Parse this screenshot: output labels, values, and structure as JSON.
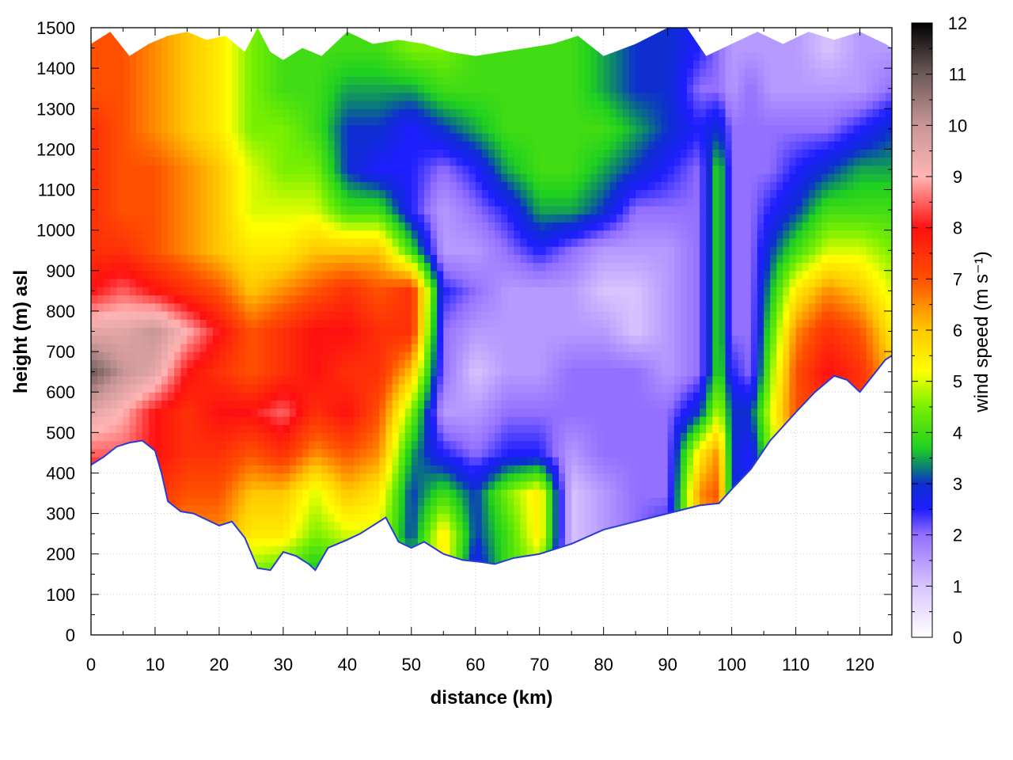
{
  "chart_data": {
    "type": "heatmap",
    "title": "",
    "xlabel": "distance (km)",
    "ylabel": "height (m) asl",
    "colorbar_label": "wind speed (m s⁻¹)",
    "xlim": [
      0,
      125
    ],
    "ylim": [
      0,
      1500
    ],
    "clim": [
      0,
      12
    ],
    "x_ticks": [
      0,
      10,
      20,
      30,
      40,
      50,
      60,
      70,
      80,
      90,
      100,
      110,
      120
    ],
    "y_ticks": [
      0,
      100,
      200,
      300,
      400,
      500,
      600,
      700,
      800,
      900,
      1000,
      1100,
      1200,
      1300,
      1400,
      1500
    ],
    "colorbar_ticks": [
      0,
      1,
      2,
      3,
      4,
      5,
      6,
      7,
      8,
      9,
      10,
      11,
      12
    ],
    "grid": true,
    "colormap": [
      {
        "v": 0,
        "c": "#ffffff"
      },
      {
        "v": 1,
        "c": "#d8c4ff"
      },
      {
        "v": 2,
        "c": "#9370ff"
      },
      {
        "v": 2.5,
        "c": "#1e1eff"
      },
      {
        "v": 3,
        "c": "#0e2ed0"
      },
      {
        "v": 3.3,
        "c": "#0a7a7a"
      },
      {
        "v": 3.7,
        "c": "#20d020"
      },
      {
        "v": 4.5,
        "c": "#78f000"
      },
      {
        "v": 5.2,
        "c": "#ffff00"
      },
      {
        "v": 6,
        "c": "#ffc800"
      },
      {
        "v": 7,
        "c": "#ff5000"
      },
      {
        "v": 8,
        "c": "#ff1010"
      },
      {
        "v": 9,
        "c": "#ffb4b4"
      },
      {
        "v": 10,
        "c": "#c89696"
      },
      {
        "v": 11,
        "c": "#6e5a5a"
      },
      {
        "v": 12,
        "c": "#000000"
      }
    ],
    "surface_height_m": [
      [
        0,
        420
      ],
      [
        2,
        440
      ],
      [
        4,
        465
      ],
      [
        6,
        475
      ],
      [
        8,
        480
      ],
      [
        10,
        455
      ],
      [
        11,
        400
      ],
      [
        12,
        330
      ],
      [
        14,
        305
      ],
      [
        16,
        300
      ],
      [
        18,
        285
      ],
      [
        20,
        270
      ],
      [
        22,
        280
      ],
      [
        24,
        240
      ],
      [
        26,
        165
      ],
      [
        28,
        160
      ],
      [
        30,
        205
      ],
      [
        32,
        195
      ],
      [
        34,
        175
      ],
      [
        35,
        160
      ],
      [
        37,
        215
      ],
      [
        40,
        235
      ],
      [
        42,
        250
      ],
      [
        44,
        270
      ],
      [
        46,
        290
      ],
      [
        48,
        230
      ],
      [
        50,
        215
      ],
      [
        52,
        230
      ],
      [
        55,
        200
      ],
      [
        58,
        185
      ],
      [
        61,
        180
      ],
      [
        63,
        175
      ],
      [
        66,
        190
      ],
      [
        70,
        200
      ],
      [
        75,
        225
      ],
      [
        80,
        260
      ],
      [
        85,
        280
      ],
      [
        90,
        300
      ],
      [
        95,
        320
      ],
      [
        98,
        325
      ],
      [
        100,
        360
      ],
      [
        103,
        410
      ],
      [
        106,
        480
      ],
      [
        110,
        550
      ],
      [
        113,
        600
      ],
      [
        116,
        640
      ],
      [
        118,
        630
      ],
      [
        120,
        600
      ],
      [
        122,
        640
      ],
      [
        124,
        680
      ],
      [
        125,
        690
      ]
    ],
    "top_height_m": [
      [
        0,
        1460
      ],
      [
        3,
        1490
      ],
      [
        6,
        1430
      ],
      [
        9,
        1460
      ],
      [
        12,
        1480
      ],
      [
        15,
        1490
      ],
      [
        18,
        1470
      ],
      [
        21,
        1480
      ],
      [
        24,
        1440
      ],
      [
        26,
        1500
      ],
      [
        28,
        1440
      ],
      [
        30,
        1420
      ],
      [
        33,
        1450
      ],
      [
        36,
        1430
      ],
      [
        40,
        1490
      ],
      [
        44,
        1460
      ],
      [
        48,
        1470
      ],
      [
        52,
        1460
      ],
      [
        56,
        1440
      ],
      [
        60,
        1430
      ],
      [
        64,
        1440
      ],
      [
        68,
        1450
      ],
      [
        72,
        1460
      ],
      [
        76,
        1480
      ],
      [
        80,
        1430
      ],
      [
        85,
        1460
      ],
      [
        90,
        1500
      ],
      [
        93,
        1500
      ],
      [
        96,
        1430
      ],
      [
        100,
        1460
      ],
      [
        104,
        1490
      ],
      [
        108,
        1460
      ],
      [
        112,
        1490
      ],
      [
        116,
        1470
      ],
      [
        120,
        1490
      ],
      [
        124,
        1460
      ],
      [
        125,
        1450
      ]
    ],
    "wind_speed_field": {
      "x_km": [
        0,
        5,
        10,
        15,
        20,
        25,
        30,
        35,
        40,
        45,
        50,
        55,
        60,
        65,
        70,
        75,
        80,
        85,
        90,
        95,
        98,
        100,
        103,
        106,
        110,
        115,
        120,
        125
      ],
      "z_m": [
        150,
        250,
        350,
        450,
        550,
        650,
        750,
        850,
        950,
        1050,
        1150,
        1250,
        1350,
        1450
      ],
      "values": [
        [
          7.5,
          7.5,
          7.0,
          6.5,
          6.0,
          4.5,
          4.0,
          3.5,
          4.0,
          4.5,
          4.0,
          5.5,
          2.5,
          4.0,
          4.5,
          1.0,
          1.5,
          2.0,
          2.5,
          6.0,
          6.5,
          3.0,
          3.0,
          4.0,
          5.0,
          6.0,
          6.0,
          6.0
        ],
        [
          7.5,
          7.5,
          7.0,
          6.5,
          6.5,
          5.5,
          5.5,
          4.5,
          5.0,
          5.0,
          3.0,
          5.5,
          3.0,
          4.0,
          5.5,
          1.0,
          1.5,
          2.0,
          2.5,
          6.0,
          6.5,
          3.0,
          3.0,
          4.0,
          5.5,
          6.0,
          6.0,
          6.0
        ],
        [
          7.5,
          7.5,
          7.5,
          7.0,
          7.0,
          6.0,
          6.0,
          5.0,
          6.0,
          5.5,
          3.0,
          4.0,
          3.0,
          4.5,
          5.5,
          1.0,
          1.5,
          2.0,
          2.0,
          6.5,
          7.0,
          3.0,
          2.5,
          4.0,
          6.0,
          6.5,
          6.5,
          6.0
        ],
        [
          8.5,
          8.5,
          8.0,
          7.5,
          7.5,
          7.0,
          7.5,
          6.5,
          7.0,
          6.5,
          3.5,
          2.5,
          2.0,
          2.5,
          2.5,
          1.5,
          2.0,
          2.0,
          2.0,
          5.5,
          6.5,
          3.0,
          2.5,
          4.5,
          6.5,
          7.0,
          7.0,
          6.5
        ],
        [
          9.5,
          9.0,
          8.0,
          7.5,
          8.0,
          8.0,
          8.5,
          7.5,
          8.0,
          7.0,
          4.5,
          1.5,
          1.5,
          2.0,
          2.0,
          2.0,
          2.0,
          2.0,
          2.0,
          3.0,
          5.0,
          3.0,
          3.0,
          5.0,
          7.0,
          7.5,
          7.5,
          6.5
        ],
        [
          11.0,
          10.0,
          9.5,
          8.0,
          7.5,
          7.0,
          7.5,
          8.0,
          7.5,
          7.5,
          6.0,
          2.0,
          1.0,
          1.5,
          1.5,
          2.0,
          2.0,
          2.0,
          1.5,
          2.0,
          4.0,
          2.5,
          2.0,
          4.5,
          7.0,
          8.0,
          7.5,
          6.0
        ],
        [
          9.5,
          9.5,
          10.0,
          9.0,
          8.0,
          7.0,
          7.5,
          8.0,
          8.0,
          7.5,
          7.5,
          2.0,
          1.5,
          1.5,
          1.5,
          1.5,
          1.5,
          1.0,
          1.5,
          2.0,
          4.0,
          2.0,
          2.0,
          4.0,
          6.5,
          7.5,
          7.0,
          5.5
        ],
        [
          8.0,
          8.5,
          8.0,
          7.5,
          7.0,
          6.0,
          6.5,
          7.0,
          7.5,
          7.0,
          7.5,
          2.5,
          2.0,
          1.5,
          1.5,
          1.5,
          1.0,
          1.0,
          1.5,
          2.0,
          4.0,
          2.0,
          2.0,
          3.5,
          5.5,
          6.5,
          6.0,
          5.0
        ],
        [
          7.5,
          7.5,
          7.0,
          6.5,
          6.0,
          5.5,
          5.5,
          6.0,
          6.0,
          6.0,
          4.0,
          1.5,
          1.5,
          2.0,
          2.5,
          2.0,
          1.5,
          1.5,
          1.5,
          2.0,
          4.0,
          2.0,
          2.0,
          3.0,
          4.0,
          5.0,
          5.0,
          4.5
        ],
        [
          7.5,
          7.0,
          7.0,
          6.5,
          6.0,
          5.0,
          5.0,
          5.0,
          4.0,
          4.0,
          2.5,
          1.5,
          2.0,
          2.5,
          3.5,
          3.5,
          3.0,
          2.0,
          2.0,
          2.0,
          4.0,
          2.0,
          2.0,
          2.5,
          3.0,
          4.0,
          4.0,
          4.0
        ],
        [
          7.5,
          7.0,
          7.0,
          6.5,
          6.0,
          5.0,
          4.5,
          4.5,
          3.0,
          2.5,
          2.5,
          2.0,
          2.5,
          3.5,
          4.0,
          4.0,
          3.5,
          3.0,
          2.5,
          2.0,
          4.0,
          2.0,
          2.0,
          2.0,
          2.5,
          3.0,
          3.5,
          3.5
        ],
        [
          7.5,
          7.0,
          6.5,
          6.0,
          5.5,
          4.5,
          4.5,
          4.0,
          3.0,
          3.0,
          2.5,
          3.0,
          3.5,
          4.0,
          4.0,
          4.0,
          4.0,
          3.5,
          3.0,
          2.5,
          3.0,
          2.0,
          2.0,
          2.0,
          2.0,
          2.0,
          2.5,
          3.0
        ],
        [
          7.0,
          7.0,
          6.5,
          6.0,
          5.5,
          4.5,
          4.0,
          4.0,
          3.5,
          3.5,
          3.5,
          4.0,
          4.0,
          4.0,
          4.0,
          4.0,
          3.5,
          3.0,
          3.0,
          2.0,
          2.0,
          1.5,
          2.0,
          1.5,
          1.5,
          1.5,
          1.5,
          2.0
        ],
        [
          7.0,
          7.0,
          6.5,
          6.0,
          5.5,
          4.5,
          4.0,
          4.0,
          4.0,
          4.0,
          4.5,
          4.5,
          4.0,
          4.0,
          4.0,
          4.0,
          3.5,
          3.0,
          3.0,
          2.5,
          2.0,
          1.5,
          1.5,
          1.5,
          1.5,
          1.0,
          1.5,
          1.5
        ]
      ]
    }
  }
}
